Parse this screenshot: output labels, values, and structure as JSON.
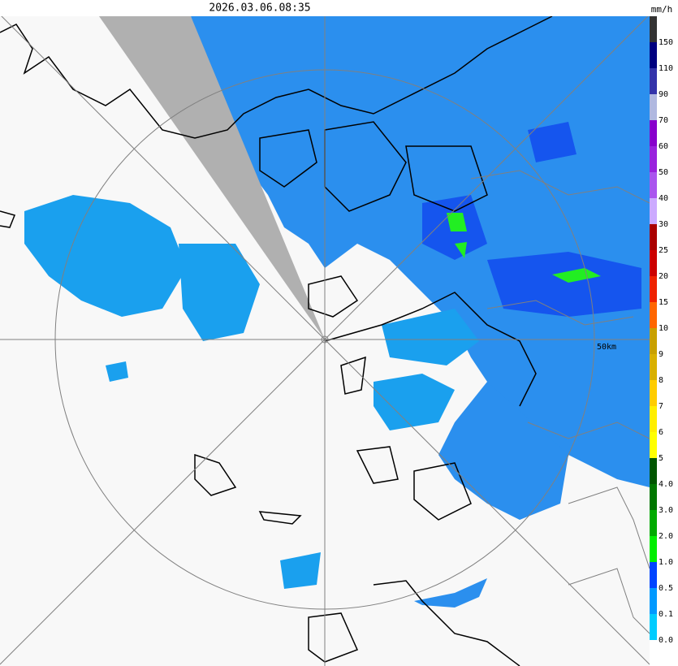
{
  "header": {
    "timestamp": "2026.03.06.08:35",
    "unit": "mm/h"
  },
  "map": {
    "range_label": "50km"
  },
  "scale": {
    "labels": [
      "150",
      "110",
      "90",
      "70",
      "60",
      "50",
      "40",
      "30",
      "25",
      "20",
      "15",
      "10",
      "9",
      "8",
      "7",
      "6",
      "5",
      "4.0",
      "3.0",
      "2.0",
      "1.0",
      "0.5",
      "0.1",
      "0.0"
    ],
    "colors": [
      "#333333",
      "#000080",
      "#3333aa",
      "#b0b8e0",
      "#8800cc",
      "#9922dd",
      "#aa55ee",
      "#ccaaff",
      "#aa0000",
      "#cc0000",
      "#ee2200",
      "#ff6600",
      "#c8a000",
      "#d8b000",
      "#ffcc00",
      "#ffee00",
      "#ffff00",
      "#005500",
      "#007700",
      "#00aa00",
      "#00ee00",
      "#0044ff",
      "#0099ff",
      "#00ccff",
      "#ffffff"
    ]
  }
}
